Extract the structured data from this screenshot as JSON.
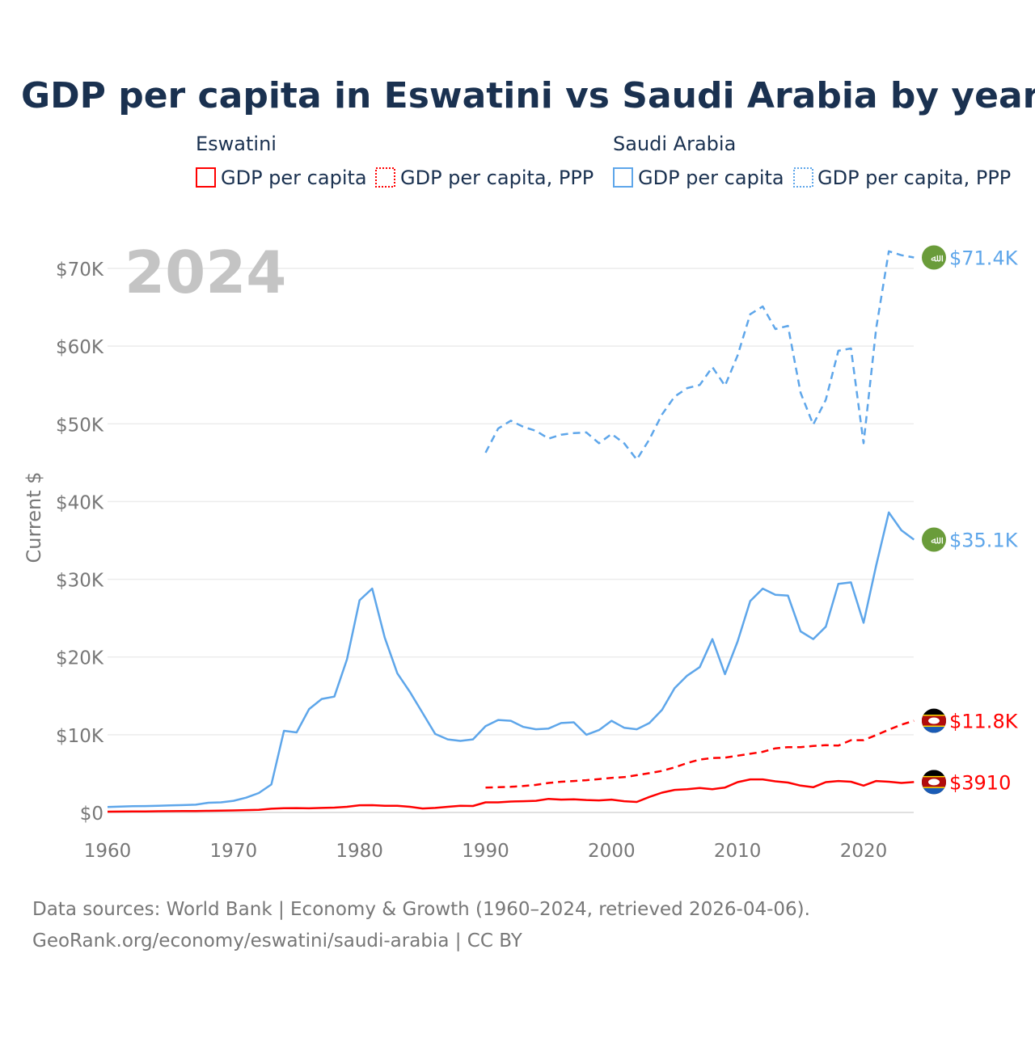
{
  "chart_data": {
    "type": "line",
    "title": "GDP per capita in Eswatini vs Saudi Arabia by year",
    "ylabel": "Current $",
    "xlabel": "",
    "xlim": [
      1960,
      2024
    ],
    "ylim": [
      0,
      70000
    ],
    "x_ticks": [
      1960,
      1970,
      1980,
      1990,
      2000,
      2010,
      2020
    ],
    "x_tick_labels": [
      "1960",
      "1970",
      "1980",
      "1990",
      "2000",
      "2010",
      "2020"
    ],
    "y_ticks": [
      0,
      10000,
      20000,
      30000,
      40000,
      50000,
      60000,
      70000
    ],
    "y_tick_labels": [
      "$0",
      "$10K",
      "$20K",
      "$30K",
      "$40K",
      "$50K",
      "$60K",
      "$70K"
    ],
    "grid": true,
    "legend_placement": "top",
    "year_overlay": "2024",
    "legend_groups": [
      {
        "country": "Eswatini",
        "items": [
          "GDP per capita",
          "GDP per capita, PPP"
        ]
      },
      {
        "country": "Saudi Arabia",
        "items": [
          "GDP per capita",
          "GDP per capita, PPP"
        ]
      }
    ],
    "series": [
      {
        "name": "Saudi Arabia GDP per capita",
        "country": "Saudi Arabia",
        "color": "#5ea6ea",
        "dashed": false,
        "start": 1960,
        "end_label": "$35.1K",
        "values": [
          700,
          750,
          800,
          820,
          850,
          900,
          950,
          1000,
          1250,
          1300,
          1500,
          1900,
          2500,
          3600,
          10500,
          10300,
          13300,
          14600,
          14900,
          19700,
          27300,
          28800,
          22500,
          17900,
          15500,
          12800,
          10100,
          9400,
          9200,
          9400,
          11100,
          11900,
          11800,
          11000,
          10700,
          10800,
          11500,
          11600,
          10000,
          10600,
          11800,
          10900,
          10700,
          11500,
          13200,
          16000,
          17600,
          18700,
          22300,
          17800,
          22000,
          27200,
          28800,
          28000,
          27900,
          23300,
          22300,
          23900,
          29400,
          29600,
          24400,
          31800,
          38600,
          36300,
          35100
        ]
      },
      {
        "name": "Saudi Arabia GDP per capita, PPP",
        "country": "Saudi Arabia",
        "color": "#5ea6ea",
        "dashed": true,
        "start": 1990,
        "end_label": "$71.4K",
        "values": [
          46300,
          49400,
          50400,
          49600,
          49100,
          48100,
          48600,
          48800,
          48900,
          47500,
          48700,
          47500,
          45400,
          48000,
          51200,
          53500,
          54600,
          55000,
          57300,
          54900,
          58800,
          64100,
          65100,
          62200,
          62600,
          54000,
          49900,
          53100,
          59400,
          59700,
          47500,
          62300,
          72200,
          71700,
          71400
        ]
      },
      {
        "name": "Eswatini GDP per capita",
        "country": "Eswatini",
        "color": "#ff0000",
        "dashed": false,
        "start": 1960,
        "end_label": "$3910",
        "values": [
          100,
          110,
          120,
          140,
          160,
          170,
          180,
          190,
          210,
          240,
          260,
          300,
          330,
          480,
          550,
          560,
          530,
          580,
          620,
          730,
          930,
          940,
          860,
          850,
          730,
          510,
          580,
          730,
          850,
          830,
          1300,
          1300,
          1400,
          1450,
          1500,
          1750,
          1650,
          1700,
          1600,
          1550,
          1650,
          1450,
          1350,
          2000,
          2550,
          2900,
          3000,
          3150,
          3000,
          3200,
          3900,
          4250,
          4250,
          4000,
          3850,
          3450,
          3250,
          3900,
          4050,
          3950,
          3450,
          4050,
          3950,
          3800,
          3910
        ]
      },
      {
        "name": "Eswatini GDP per capita, PPP",
        "country": "Eswatini",
        "color": "#ff0000",
        "dashed": true,
        "start": 1990,
        "end_label": "$11.8K",
        "values": [
          3200,
          3250,
          3300,
          3400,
          3550,
          3800,
          3950,
          4050,
          4150,
          4300,
          4450,
          4550,
          4800,
          5050,
          5350,
          5800,
          6350,
          6800,
          7000,
          7050,
          7300,
          7550,
          7800,
          8250,
          8400,
          8400,
          8550,
          8650,
          8600,
          9300,
          9300,
          9950,
          10650,
          11300,
          11800
        ]
      }
    ]
  },
  "saudi_flag_text": "ﷲ",
  "footer": {
    "line1": "Data sources: World Bank | Economy & Growth (1960–2024, retrieved 2026-04-06).",
    "line2": "GeoRank.org/economy/eswatini/saudi-arabia | CC BY"
  }
}
